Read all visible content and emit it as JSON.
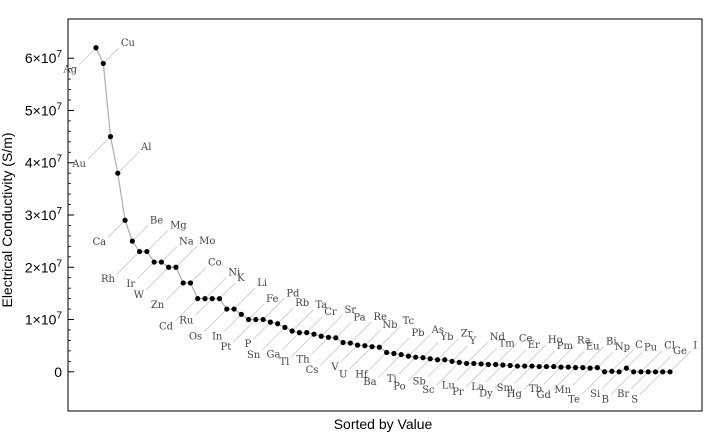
{
  "chart_data": {
    "type": "line",
    "title": "",
    "xlabel": "Sorted by Value",
    "ylabel": "Electrical Conductivity (S/m)",
    "ylim": [
      -7500000,
      67500000
    ],
    "grid": false,
    "y_ticks": [
      {
        "value": 0,
        "label": "0"
      },
      {
        "value": 10000000,
        "label": "1×10",
        "exp": "7"
      },
      {
        "value": 20000000,
        "label": "2×10",
        "exp": "7"
      },
      {
        "value": 30000000,
        "label": "3×10",
        "exp": "7"
      },
      {
        "value": 40000000,
        "label": "4×10",
        "exp": "7"
      },
      {
        "value": 50000000,
        "label": "5×10",
        "exp": "7"
      },
      {
        "value": 60000000,
        "label": "6×10",
        "exp": "7"
      }
    ],
    "series": [
      {
        "name": "Electrical Conductivity",
        "points": [
          {
            "rank": 1,
            "label": "Ag",
            "value": 62000000
          },
          {
            "rank": 2,
            "label": "Cu",
            "value": 59000000
          },
          {
            "rank": 3,
            "label": "Au",
            "value": 45000000
          },
          {
            "rank": 4,
            "label": "Al",
            "value": 38000000
          },
          {
            "rank": 5,
            "label": "Ca",
            "value": 29000000
          },
          {
            "rank": 6,
            "label": "Be",
            "value": 25000000
          },
          {
            "rank": 7,
            "label": "Rh",
            "value": 23000000
          },
          {
            "rank": 8,
            "label": "Mg",
            "value": 23000000
          },
          {
            "rank": 9,
            "label": "Ir",
            "value": 21000000
          },
          {
            "rank": 10,
            "label": "Na",
            "value": 21000000
          },
          {
            "rank": 11,
            "label": "W",
            "value": 20000000
          },
          {
            "rank": 12,
            "label": "Mo",
            "value": 20000000
          },
          {
            "rank": 13,
            "label": "Zn",
            "value": 17000000
          },
          {
            "rank": 14,
            "label": "Co",
            "value": 17000000
          },
          {
            "rank": 15,
            "label": "Cd",
            "value": 14000000
          },
          {
            "rank": 16,
            "label": "Ni",
            "value": 14000000
          },
          {
            "rank": 17,
            "label": "Ru",
            "value": 14000000
          },
          {
            "rank": 18,
            "label": "K",
            "value": 14000000
          },
          {
            "rank": 19,
            "label": "Os",
            "value": 12000000
          },
          {
            "rank": 20,
            "label": "Li",
            "value": 12000000
          },
          {
            "rank": 21,
            "label": "In",
            "value": 11000000
          },
          {
            "rank": 22,
            "label": "Fe",
            "value": 10000000
          },
          {
            "rank": 23,
            "label": "Pt",
            "value": 10000000
          },
          {
            "rank": 24,
            "label": "Pd",
            "value": 10000000
          },
          {
            "rank": 25,
            "label": "P",
            "value": 9500000
          },
          {
            "rank": 26,
            "label": "Rb",
            "value": 9200000
          },
          {
            "rank": 27,
            "label": "Sn",
            "value": 8500000
          },
          {
            "rank": 28,
            "label": "Ta",
            "value": 7800000
          },
          {
            "rank": 29,
            "label": "Ga",
            "value": 7500000
          },
          {
            "rank": 30,
            "label": "Cr",
            "value": 7500000
          },
          {
            "rank": 31,
            "label": "Tl",
            "value": 7200000
          },
          {
            "rank": 32,
            "label": "Sr",
            "value": 6800000
          },
          {
            "rank": 33,
            "label": "Th",
            "value": 6600000
          },
          {
            "rank": 34,
            "label": "Pa",
            "value": 6500000
          },
          {
            "rank": 35,
            "label": "Cs",
            "value": 5600000
          },
          {
            "rank": 36,
            "label": "Re",
            "value": 5500000
          },
          {
            "rank": 37,
            "label": "V",
            "value": 5100000
          },
          {
            "rank": 38,
            "label": "Nb",
            "value": 5000000
          },
          {
            "rank": 39,
            "label": "U",
            "value": 4800000
          },
          {
            "rank": 40,
            "label": "Tc",
            "value": 4700000
          },
          {
            "rank": 41,
            "label": "Hf",
            "value": 3700000
          },
          {
            "rank": 42,
            "label": "Pb",
            "value": 3500000
          },
          {
            "rank": 43,
            "label": "Ba",
            "value": 3300000
          },
          {
            "rank": 44,
            "label": "As",
            "value": 3000000
          },
          {
            "rank": 45,
            "label": "Ti",
            "value": 2800000
          },
          {
            "rank": 46,
            "label": "Yb",
            "value": 2700000
          },
          {
            "rank": 47,
            "label": "Po",
            "value": 2500000
          },
          {
            "rank": 48,
            "label": "Zr",
            "value": 2300000
          },
          {
            "rank": 49,
            "label": "Sb",
            "value": 2300000
          },
          {
            "rank": 50,
            "label": "Y",
            "value": 2000000
          },
          {
            "rank": 51,
            "label": "Sc",
            "value": 1800000
          },
          {
            "rank": 52,
            "label": "Nd",
            "value": 1600000
          },
          {
            "rank": 53,
            "label": "Lu",
            "value": 1600000
          },
          {
            "rank": 54,
            "label": "Tm",
            "value": 1500000
          },
          {
            "rank": 55,
            "label": "Pr",
            "value": 1400000
          },
          {
            "rank": 56,
            "label": "Ce",
            "value": 1400000
          },
          {
            "rank": 57,
            "label": "La",
            "value": 1300000
          },
          {
            "rank": 58,
            "label": "Er",
            "value": 1200000
          },
          {
            "rank": 59,
            "label": "Dy",
            "value": 1100000
          },
          {
            "rank": 60,
            "label": "Ho",
            "value": 1100000
          },
          {
            "rank": 61,
            "label": "Sm",
            "value": 1100000
          },
          {
            "rank": 62,
            "label": "Pm",
            "value": 1000000
          },
          {
            "rank": 63,
            "label": "Hg",
            "value": 1000000
          },
          {
            "rank": 64,
            "label": "Ra",
            "value": 1000000
          },
          {
            "rank": 65,
            "label": "Tb",
            "value": 900000
          },
          {
            "rank": 66,
            "label": "Eu",
            "value": 900000
          },
          {
            "rank": 67,
            "label": "Gd",
            "value": 800000
          },
          {
            "rank": 68,
            "label": "Bi",
            "value": 800000
          },
          {
            "rank": 69,
            "label": "Mn",
            "value": 700000
          },
          {
            "rank": 70,
            "label": "Np",
            "value": 800000
          },
          {
            "rank": 71,
            "label": "Te",
            "value": 10000
          },
          {
            "rank": 72,
            "label": "C",
            "value": 100000
          },
          {
            "rank": 73,
            "label": "Si",
            "value": 1000
          },
          {
            "rank": 74,
            "label": "Pu",
            "value": 700000
          },
          {
            "rank": 75,
            "label": "B",
            "value": 0.0001
          },
          {
            "rank": 76,
            "label": "Cl",
            "value": 0.01
          },
          {
            "rank": 77,
            "label": "Br",
            "value": 1e-07
          },
          {
            "rank": 78,
            "label": "Ge",
            "value": 2
          },
          {
            "rank": 79,
            "label": "S",
            "value": 1e-15
          },
          {
            "rank": 80,
            "label": "I",
            "value": 1e-07
          }
        ]
      }
    ]
  }
}
